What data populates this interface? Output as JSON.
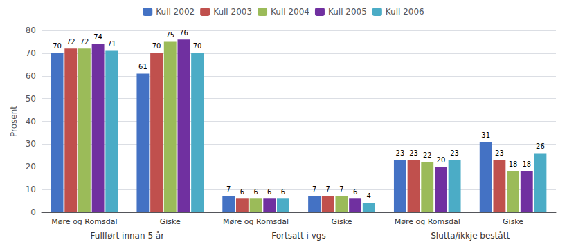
{
  "chart_data": {
    "type": "bar",
    "ylabel": "Prosent",
    "categories": [
      "Møre og Romsdal",
      "Giske",
      "Møre og Romsdal",
      "Giske",
      "Møre og Romsdal",
      "Giske"
    ],
    "category_group": [
      "Fullført innan 5 år",
      "Fullført innan 5 år",
      "Fortsatt i vgs",
      "Fortsatt i vgs",
      "Slutta/ikkje bestått",
      "Slutta/ikkje bestått"
    ],
    "series": [
      {
        "name": "Kull 2002",
        "color": "#4472C4",
        "values": [
          70,
          61,
          7,
          7,
          23,
          31
        ]
      },
      {
        "name": "Kull 2003",
        "color": "#C0504D",
        "values": [
          72,
          70,
          6,
          7,
          23,
          23
        ]
      },
      {
        "name": "Kull 2004",
        "color": "#9BBB59",
        "values": [
          72,
          75,
          6,
          7,
          22,
          18
        ]
      },
      {
        "name": "Kull 2005",
        "color": "#7030A0",
        "values": [
          74,
          76,
          6,
          6,
          20,
          18
        ]
      },
      {
        "name": "Kull 2006",
        "color": "#4BACC6",
        "values": [
          71,
          70,
          6,
          4,
          23,
          26
        ]
      }
    ],
    "ylim": [
      0,
      80
    ],
    "yticks": [
      0,
      10,
      20,
      30,
      40,
      50,
      60,
      70,
      80
    ],
    "grid": true,
    "legend": "top",
    "data_labels": true
  }
}
